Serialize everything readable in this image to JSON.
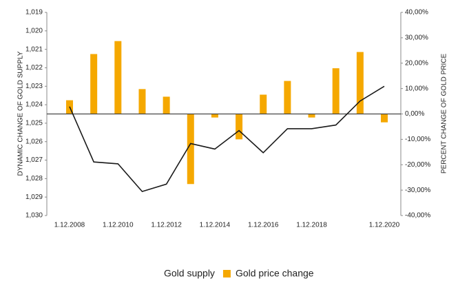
{
  "chart_data": {
    "type": "bar-line",
    "y_label": "DYNAMIC CHANGE OF GOLD SUPPLY",
    "y2_label": "PERCENT CHANGE OF GOLD PRICE",
    "categories": [
      "1.12.2008",
      null,
      "1.12.2010",
      null,
      "1.12.2012",
      null,
      "1.12.2014",
      null,
      "1.12.2016",
      null,
      "1.12.2018",
      null,
      null,
      "1.12.2020"
    ],
    "series": [
      {
        "name": "Gold supply",
        "type": "line",
        "color": "#1a1a1a",
        "axis": "y",
        "values": [
          1.0241,
          1.0271,
          1.0272,
          1.0287,
          1.0283,
          1.0261,
          1.0264,
          1.0254,
          1.0266,
          1.0253,
          1.0253,
          1.0251,
          1.0238,
          1.023
        ]
      },
      {
        "name": "Gold price change",
        "type": "bar",
        "color": "#f5a800",
        "axis": "y2",
        "values": [
          5.4,
          23.6,
          28.7,
          9.8,
          6.8,
          -27.6,
          -1.4,
          -10,
          7.6,
          13,
          -1.4,
          18,
          24.4,
          -3.3
        ]
      }
    ],
    "ylim": [
      1.03,
      1.019
    ],
    "yticks": [
      {
        "value": 1.019,
        "label": "1,019"
      },
      {
        "value": 1.02,
        "label": "1,020"
      },
      {
        "value": 1.021,
        "label": "1,021"
      },
      {
        "value": 1.022,
        "label": "1,022"
      },
      {
        "value": 1.023,
        "label": "1,023"
      },
      {
        "value": 1.024,
        "label": "1,024"
      },
      {
        "value": 1.025,
        "label": "1,025"
      },
      {
        "value": 1.026,
        "label": "1,026"
      },
      {
        "value": 1.027,
        "label": "1,027"
      },
      {
        "value": 1.028,
        "label": "1,028"
      },
      {
        "value": 1.029,
        "label": "1,029"
      },
      {
        "value": 1.03,
        "label": "1,030"
      }
    ],
    "y2lim": [
      -40,
      40
    ],
    "y2ticks": [
      {
        "value": 40,
        "label": "40,00%"
      },
      {
        "value": 30,
        "label": "30,00%"
      },
      {
        "value": 20,
        "label": "20,00%"
      },
      {
        "value": 10,
        "label": "10,00%"
      },
      {
        "value": 0,
        "label": "0,00%"
      },
      {
        "value": -10,
        "label": "-10,00%"
      },
      {
        "value": -20,
        "label": "-20,00%"
      },
      {
        "value": -30,
        "label": "-30,00%"
      },
      {
        "value": -40,
        "label": "-40,00%"
      }
    ],
    "legend": "bottom"
  }
}
